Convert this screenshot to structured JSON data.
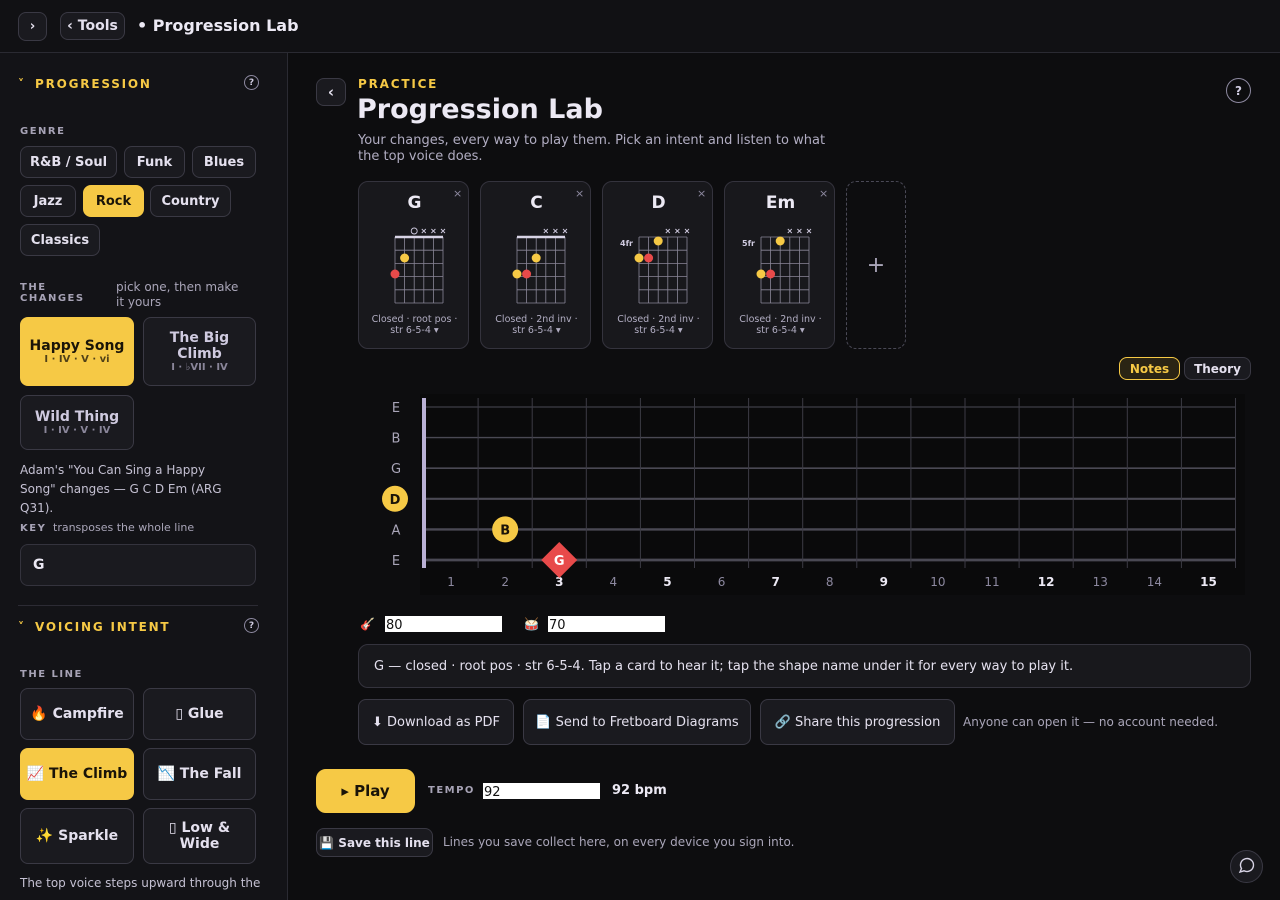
{
  "topbar": {
    "expand": "›",
    "tools": "‹ Tools",
    "title": "• Progression Lab"
  },
  "sidebar": {
    "progression_heading": "PROGRESSION",
    "help": "?",
    "genre_label": "GENRE",
    "genres": [
      "R&B / Soul",
      "Funk",
      "Blues",
      "Jazz",
      "Rock",
      "Country",
      "Classics"
    ],
    "changes_label": "THE CHANGES",
    "changes_hint": "pick one, then make it yours",
    "presets": [
      {
        "name": "Happy Song",
        "numerals": "I · IV · V · vi"
      },
      {
        "name": "The Big Climb",
        "numerals": "I · ♭VII · IV"
      },
      {
        "name": "Wild Thing",
        "numerals": "I · IV · V · IV"
      }
    ],
    "preset_description": "Adam's \"You Can Sing a Happy Song\" changes — G C D Em (ARG Q31).",
    "key_label": "KEY",
    "key_hint": "transposes the whole line",
    "key_value": "G",
    "voicing_heading": "VOICING INTENT",
    "voicing_help": "?",
    "line_label": "THE LINE",
    "intents": [
      "🔥 Campfire",
      "▯ Glue",
      "📈 The Climb",
      "📉 The Fall",
      "✨ Sparkle",
      "▯ Low & Wide"
    ],
    "intent_description": "The top voice steps upward through the"
  },
  "main": {
    "back": "‹",
    "eyebrow": "PRACTICE",
    "title": "Progression Lab",
    "subtitle": "Your changes, every way to play them. Pick an intent and listen to what the top voice does.",
    "help": "?",
    "cards": [
      {
        "chord": "G",
        "close": "×",
        "fret_label": null,
        "caption": "Closed · root pos · str 6-5-4 ▾"
      },
      {
        "chord": "C",
        "close": "×",
        "fret_label": null,
        "caption": "Closed · 2nd inv · str 6-5-4 ▾"
      },
      {
        "chord": "D",
        "close": "×",
        "fret_label": "4fr",
        "caption": "Closed · 2nd inv · str 6-5-4 ▾"
      },
      {
        "chord": "Em",
        "close": "×",
        "fret_label": "5fr",
        "caption": "Closed · 2nd inv · str 6-5-4 ▾"
      }
    ],
    "add_card": "+",
    "view_toggle": [
      "Notes",
      "Theory"
    ],
    "fretboard": {
      "strings": [
        "E",
        "B",
        "G",
        "D",
        "A",
        "E"
      ],
      "frets": [
        1,
        2,
        3,
        4,
        5,
        6,
        7,
        8,
        9,
        10,
        11,
        12,
        13,
        14,
        15
      ],
      "markers": [
        "D",
        "B",
        "G"
      ]
    },
    "guitar_volume": "80",
    "drum_volume": "70",
    "info": "G — closed · root pos · str 6-5-4. Tap a card to hear it; tap the shape name under it for every way to play it.",
    "actions": [
      "⬇ Download as PDF",
      "📄 Send to Fretboard Diagrams",
      "🔗 Share this progression"
    ],
    "actions_hint": "Anyone can open it — no account needed.",
    "play": "▸ Play",
    "tempo_label": "TEMPO",
    "tempo_value": "92",
    "tempo_display": "92 bpm",
    "save": "💾 Save this line",
    "save_hint": "Lines you save collect here, on every device you sign into."
  }
}
